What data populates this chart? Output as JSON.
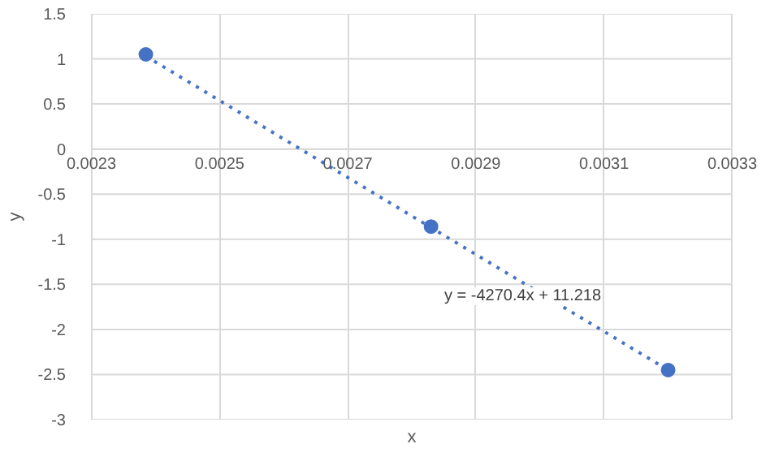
{
  "chart_data": {
    "type": "scatter",
    "xlabel": "x",
    "ylabel": "y",
    "x": [
      0.002385,
      0.00283,
      0.0032
    ],
    "series": [
      {
        "color": "#4472c4",
        "values": [
          1.05,
          -0.86,
          -2.45
        ],
        "marker": "circle"
      },
      {
        "type": "line",
        "color": "#4472c4",
        "x": [
          0.002385,
          0.0032
        ],
        "values": [
          1.03,
          -2.45
        ],
        "line_style": "dotted",
        "marker": "none"
      }
    ],
    "xlim": [
      0.0023,
      0.0033
    ],
    "xticks": [
      0.0023,
      0.0025,
      0.0027,
      0.0029,
      0.0031,
      0.0033
    ],
    "ylim": [
      -3,
      1.5
    ],
    "yticks": [
      -3,
      -2.5,
      -2,
      -1.5,
      -1,
      -0.5,
      0,
      0.5,
      1,
      1.5
    ],
    "grid": true,
    "annotations": [
      "y = -4270.4x + 11.218"
    ]
  }
}
